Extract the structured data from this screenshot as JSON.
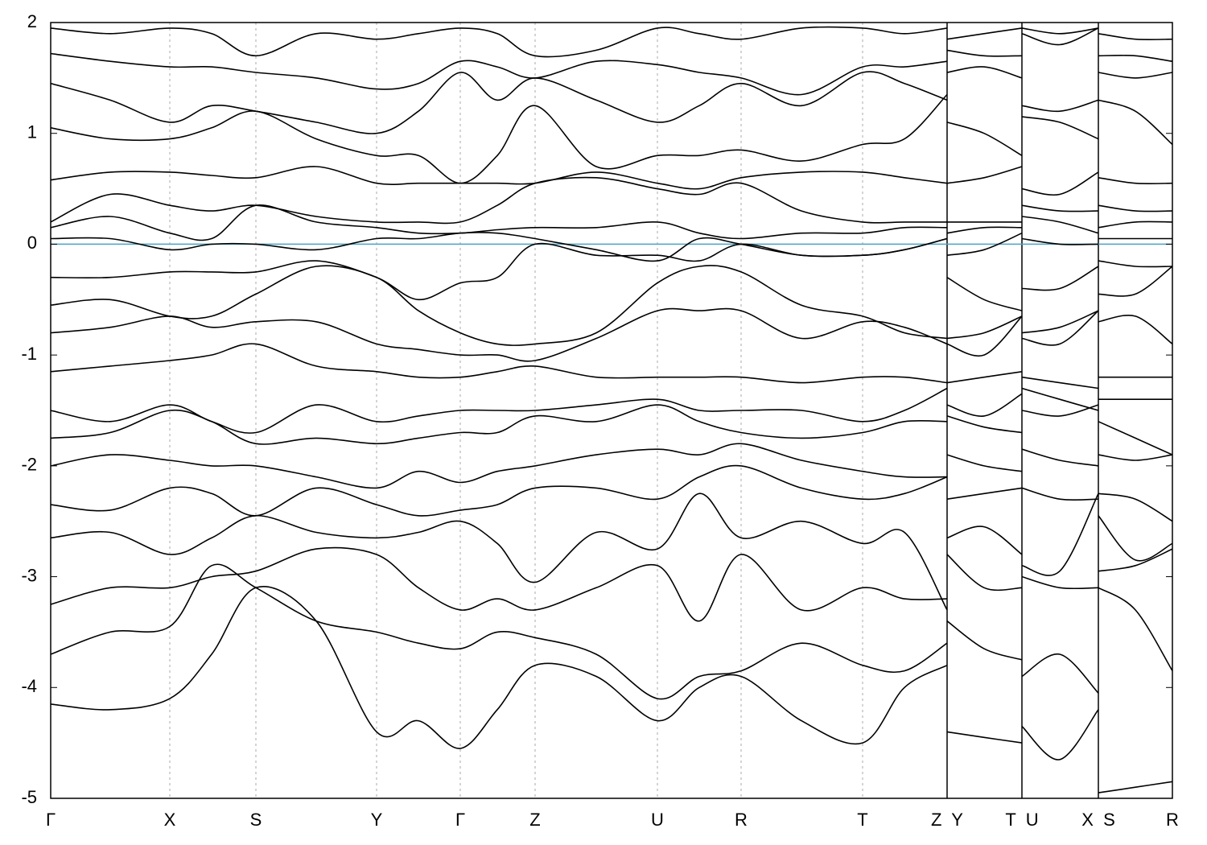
{
  "chart_data": {
    "type": "band_structure",
    "xlim": [
      0,
      1394
    ],
    "ylim": [
      -5,
      2
    ],
    "yticks": [
      2,
      1,
      0,
      -1,
      -2,
      -3,
      -4,
      -5
    ],
    "xticks": [
      {
        "value": 0,
        "label": "Γ"
      },
      {
        "value": 148,
        "label": "X"
      },
      {
        "value": 255,
        "label": "S"
      },
      {
        "value": 405,
        "label": "Y"
      },
      {
        "value": 509,
        "label": "Γ"
      },
      {
        "value": 602,
        "label": "Z"
      },
      {
        "value": 754,
        "label": "U"
      },
      {
        "value": 858,
        "label": "R"
      },
      {
        "value": 1009,
        "label": "T"
      },
      {
        "value": 1114,
        "label": "Z  Y"
      },
      {
        "value": 1207,
        "label": "T  U"
      },
      {
        "value": 1302,
        "label": "X  S"
      },
      {
        "value": 1394,
        "label": "R"
      }
    ],
    "line_color": "#000000",
    "grid_color": "#aaaaaa",
    "fermi_level": 0,
    "fermi_color": "#4aa3c4",
    "x": [
      0,
      74,
      148,
      200,
      255,
      330,
      405,
      457,
      509,
      555,
      602,
      678,
      754,
      806,
      858,
      933,
      1009,
      1061,
      1114,
      1114,
      1114,
      1160,
      1207,
      1207,
      1207,
      1254,
      1302,
      1302,
      1302,
      1348,
      1394
    ],
    "bands": [
      [
        1.95,
        1.9,
        1.95,
        1.9,
        1.7,
        1.9,
        1.85,
        1.9,
        1.95,
        1.9,
        1.7,
        1.75,
        1.95,
        1.9,
        1.85,
        1.95,
        1.95,
        1.9,
        1.95,
        null,
        1.85,
        1.9,
        1.95,
        null,
        1.95,
        1.9,
        1.95,
        null,
        1.9,
        1.85,
        1.85
      ],
      [
        1.72,
        1.65,
        1.6,
        1.6,
        1.55,
        1.5,
        1.4,
        1.45,
        1.65,
        1.6,
        1.5,
        1.65,
        1.62,
        1.55,
        1.5,
        1.35,
        1.6,
        1.6,
        1.65,
        null,
        1.75,
        1.7,
        1.7,
        null,
        1.9,
        1.8,
        1.95,
        null,
        1.7,
        1.7,
        1.65
      ],
      [
        1.45,
        1.3,
        1.1,
        1.25,
        1.2,
        1.1,
        1.0,
        1.2,
        1.55,
        1.3,
        1.5,
        1.3,
        1.1,
        1.25,
        1.45,
        1.25,
        1.55,
        1.45,
        1.3,
        null,
        1.55,
        1.6,
        1.5,
        null,
        1.25,
        1.2,
        1.3,
        null,
        1.55,
        1.5,
        1.55
      ],
      [
        1.05,
        0.95,
        0.95,
        1.05,
        1.2,
        0.95,
        0.8,
        0.8,
        0.55,
        0.8,
        1.25,
        0.7,
        0.8,
        0.8,
        0.85,
        0.75,
        0.9,
        0.95,
        1.35,
        null,
        1.1,
        1.0,
        0.8,
        null,
        1.15,
        1.1,
        0.95,
        null,
        1.3,
        1.2,
        0.9
      ],
      [
        0.58,
        0.65,
        0.65,
        0.62,
        0.6,
        0.7,
        0.55,
        0.55,
        0.55,
        0.55,
        0.55,
        0.65,
        0.55,
        0.5,
        0.6,
        0.65,
        0.65,
        0.6,
        0.55,
        null,
        0.55,
        0.6,
        0.7,
        null,
        0.5,
        0.45,
        0.65,
        null,
        0.6,
        0.55,
        0.55
      ],
      [
        0.2,
        0.45,
        0.35,
        0.3,
        0.35,
        0.25,
        0.2,
        0.2,
        0.2,
        0.35,
        0.55,
        0.6,
        0.5,
        0.45,
        0.55,
        0.3,
        0.2,
        0.2,
        0.2,
        null,
        0.2,
        0.2,
        0.2,
        null,
        0.35,
        0.3,
        0.3,
        null,
        0.35,
        0.3,
        0.3
      ],
      [
        0.15,
        0.25,
        0.1,
        0.05,
        0.35,
        0.2,
        0.15,
        0.1,
        0.1,
        0.13,
        0.15,
        0.15,
        0.2,
        0.1,
        0.05,
        0.1,
        0.1,
        0.15,
        0.15,
        null,
        0.1,
        0.15,
        0.15,
        null,
        0.25,
        0.2,
        0.1,
        null,
        0.15,
        0.2,
        0.2
      ],
      [
        0.05,
        0.05,
        -0.05,
        0.0,
        0.0,
        -0.05,
        0.05,
        0.05,
        0.1,
        0.1,
        0.05,
        -0.05,
        -0.15,
        0.05,
        0.0,
        -0.1,
        -0.1,
        -0.05,
        0.05,
        null,
        -0.1,
        -0.05,
        0.1,
        null,
        0.05,
        0.0,
        0.0,
        null,
        0.05,
        0.05,
        0.05
      ],
      [
        -0.3,
        -0.3,
        -0.25,
        -0.25,
        -0.25,
        -0.15,
        -0.3,
        -0.5,
        -0.35,
        -0.3,
        0.0,
        -0.1,
        -0.1,
        -0.15,
        0.0,
        -0.1,
        -0.1,
        -0.05,
        0.05,
        null,
        -0.3,
        -0.5,
        -0.6,
        null,
        -0.4,
        -0.4,
        -0.2,
        null,
        -0.15,
        -0.2,
        -0.2
      ],
      [
        -0.55,
        -0.5,
        -0.65,
        -0.65,
        -0.45,
        -0.2,
        -0.3,
        -0.6,
        -0.8,
        -0.9,
        -0.9,
        -0.8,
        -0.35,
        -0.2,
        -0.25,
        -0.55,
        -0.65,
        -0.8,
        -0.85,
        null,
        -0.85,
        -0.8,
        -0.65,
        null,
        -0.85,
        -0.9,
        -0.6,
        null,
        -0.45,
        -0.45,
        -0.2
      ],
      [
        -0.8,
        -0.75,
        -0.65,
        -0.75,
        -0.7,
        -0.7,
        -0.9,
        -0.95,
        -1.0,
        -1.0,
        -1.05,
        -0.85,
        -0.6,
        -0.6,
        -0.6,
        -0.85,
        -0.7,
        -0.75,
        -0.9,
        null,
        -0.9,
        -1.0,
        -0.65,
        null,
        -0.8,
        -0.75,
        -0.6,
        null,
        -0.7,
        -0.65,
        -0.9
      ],
      [
        -1.15,
        -1.1,
        -1.05,
        -1.0,
        -0.9,
        -1.1,
        -1.15,
        -1.2,
        -1.2,
        -1.15,
        -1.1,
        -1.2,
        -1.2,
        -1.2,
        -1.2,
        -1.25,
        -1.2,
        -1.2,
        -1.25,
        null,
        -1.25,
        -1.2,
        -1.15,
        null,
        -1.2,
        -1.25,
        -1.3,
        null,
        -1.2,
        -1.2,
        -1.2
      ],
      [
        -1.5,
        -1.6,
        -1.45,
        -1.6,
        -1.7,
        -1.45,
        -1.6,
        -1.55,
        -1.5,
        -1.5,
        -1.5,
        -1.45,
        -1.4,
        -1.5,
        -1.5,
        -1.5,
        -1.6,
        -1.5,
        -1.3,
        null,
        -1.45,
        -1.55,
        -1.35,
        null,
        -1.3,
        -1.4,
        -1.5,
        null,
        -1.4,
        -1.4,
        -1.4
      ],
      [
        -1.75,
        -1.7,
        -1.5,
        -1.6,
        -1.8,
        -1.75,
        -1.8,
        -1.75,
        -1.7,
        -1.7,
        -1.55,
        -1.6,
        -1.45,
        -1.6,
        -1.7,
        -1.75,
        -1.7,
        -1.6,
        -1.6,
        null,
        -1.55,
        -1.65,
        -1.7,
        null,
        -1.5,
        -1.55,
        -1.45,
        null,
        -1.6,
        -1.75,
        -1.9
      ],
      [
        -2.0,
        -1.9,
        -1.95,
        -2.0,
        -2.0,
        -2.1,
        -2.2,
        -2.05,
        -2.15,
        -2.05,
        -2.0,
        -1.9,
        -1.85,
        -1.9,
        -1.8,
        -1.95,
        -2.05,
        -2.1,
        -2.1,
        null,
        -1.9,
        -2.0,
        -2.05,
        null,
        -1.85,
        -1.95,
        -2.0,
        null,
        -1.9,
        -1.95,
        -1.9
      ],
      [
        -2.35,
        -2.4,
        -2.2,
        -2.25,
        -2.45,
        -2.2,
        -2.35,
        -2.45,
        -2.4,
        -2.35,
        -2.2,
        -2.2,
        -2.3,
        -2.1,
        -2.0,
        -2.2,
        -2.3,
        -2.25,
        -2.1,
        null,
        -2.3,
        -2.25,
        -2.2,
        null,
        -2.2,
        -2.3,
        -2.3,
        null,
        -2.25,
        -2.3,
        -2.5
      ],
      [
        -2.65,
        -2.6,
        -2.8,
        -2.65,
        -2.45,
        -2.6,
        -2.65,
        -2.6,
        -2.5,
        -2.7,
        -3.05,
        -2.6,
        -2.75,
        -2.25,
        -2.65,
        -2.5,
        -2.7,
        -2.6,
        -3.3,
        null,
        -2.65,
        -2.55,
        -2.8,
        null,
        -2.9,
        -2.95,
        -2.25,
        null,
        -2.45,
        -2.85,
        -2.7
      ],
      [
        -3.25,
        -3.1,
        -3.1,
        -3.0,
        -2.95,
        -2.75,
        -2.8,
        -3.1,
        -3.3,
        -3.2,
        -3.3,
        -3.1,
        -2.9,
        -3.4,
        -2.8,
        -3.3,
        -3.1,
        -3.2,
        -3.2,
        null,
        -2.8,
        -3.1,
        -3.1,
        null,
        -3.0,
        -3.1,
        -3.1,
        null,
        -2.95,
        -2.9,
        -2.75
      ],
      [
        -3.7,
        -3.5,
        -3.45,
        -2.9,
        -3.1,
        -3.4,
        -3.5,
        -3.6,
        -3.65,
        -3.5,
        -3.55,
        -3.7,
        -4.1,
        -3.9,
        -3.85,
        -3.6,
        -3.8,
        -3.85,
        -3.6,
        null,
        -3.4,
        -3.65,
        -3.75,
        null,
        -3.9,
        -3.7,
        -4.05,
        null,
        -3.1,
        -3.3,
        -3.85
      ],
      [
        -4.15,
        -4.2,
        -4.1,
        -3.7,
        -3.1,
        -3.4,
        -4.4,
        -4.3,
        -4.55,
        -4.2,
        -3.8,
        -3.9,
        -4.3,
        -4.0,
        -3.9,
        -4.3,
        -4.5,
        -4.0,
        -3.8,
        null,
        -4.4,
        -4.45,
        -4.5,
        null,
        -4.35,
        -4.65,
        -4.2,
        null,
        -4.95,
        -4.9,
        -4.85
      ]
    ]
  }
}
